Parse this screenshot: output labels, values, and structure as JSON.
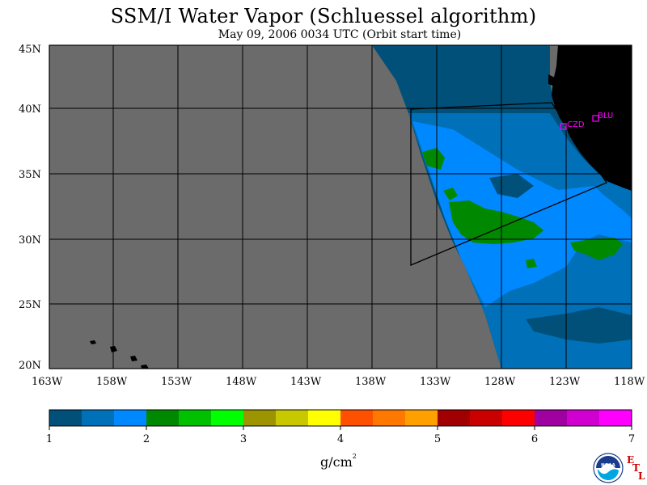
{
  "title": "SSM/I Water Vapor (Schluessel algorithm)",
  "subtitle": "May 09, 2006  0034 UTC  (Orbit start time)",
  "map": {
    "lat_labels": [
      "45N",
      "40N",
      "35N",
      "30N",
      "25N",
      "20N"
    ],
    "lon_labels": [
      "163W",
      "158W",
      "153W",
      "148W",
      "143W",
      "138W",
      "133W",
      "128W",
      "123W",
      "118W"
    ],
    "stations": [
      {
        "id": "CZD",
        "lon": -123.0,
        "lat": 38.6
      },
      {
        "id": "BLU",
        "lon": -121.2,
        "lat": 39.2
      }
    ],
    "no_data_color": "#6b6b6b",
    "land_color": "#000000"
  },
  "colorbar": {
    "colors": [
      "#00507a",
      "#0070b8",
      "#0088ff",
      "#008800",
      "#00c000",
      "#00ff00",
      "#9c9400",
      "#c8c800",
      "#ffff00",
      "#ff5000",
      "#ff7800",
      "#ffa000",
      "#a00000",
      "#c80000",
      "#ff0000",
      "#a000a0",
      "#d000d0",
      "#ff00ff"
    ],
    "tick_labels": [
      "1",
      "2",
      "3",
      "4",
      "5",
      "6",
      "7"
    ],
    "unit": "g/cm",
    "unit_sup": "2"
  },
  "logo": {
    "noaa_text": "NOAA",
    "etl_letters": [
      "E",
      "T",
      "L"
    ]
  }
}
